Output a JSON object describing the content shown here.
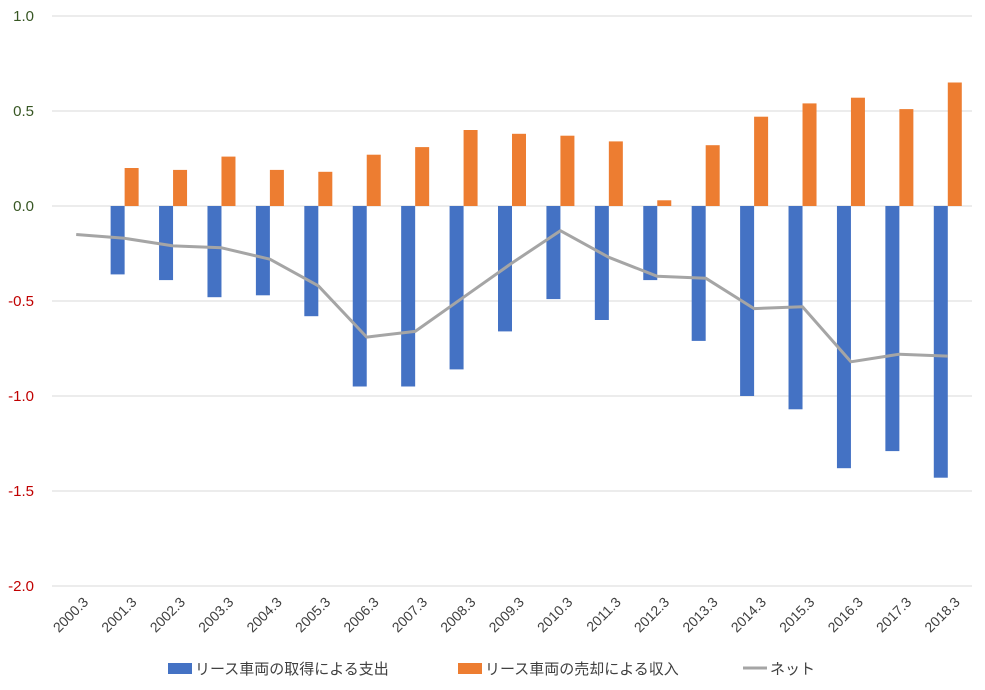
{
  "chart_data": {
    "type": "bar",
    "categories": [
      "2000.3",
      "2001.3",
      "2002.3",
      "2003.3",
      "2004.3",
      "2005.3",
      "2006.3",
      "2007.3",
      "2008.3",
      "2009.3",
      "2010.3",
      "2011.3",
      "2012.3",
      "2013.3",
      "2014.3",
      "2015.3",
      "2016.3",
      "2017.3",
      "2018.3"
    ],
    "series": [
      {
        "name": "リース車両の取得による支出",
        "kind": "bar",
        "color": "#4472C4",
        "values": [
          null,
          -0.36,
          -0.39,
          -0.48,
          -0.47,
          -0.58,
          -0.95,
          -0.95,
          -0.86,
          -0.66,
          -0.49,
          -0.6,
          -0.39,
          -0.71,
          -1.0,
          -1.07,
          -1.38,
          -1.29,
          -1.43
        ]
      },
      {
        "name": "リース車両の売却による収入",
        "kind": "bar",
        "color": "#ED7D31",
        "values": [
          null,
          0.2,
          0.19,
          0.26,
          0.19,
          0.18,
          0.27,
          0.31,
          0.4,
          0.38,
          0.37,
          0.34,
          0.03,
          0.32,
          0.47,
          0.54,
          0.57,
          0.51,
          0.65
        ]
      },
      {
        "name": "ネット",
        "kind": "line",
        "color": "#A5A5A5",
        "values": [
          -0.15,
          -0.17,
          -0.21,
          -0.22,
          -0.28,
          -0.42,
          -0.69,
          -0.66,
          -0.48,
          -0.3,
          -0.13,
          -0.27,
          -0.37,
          -0.38,
          -0.54,
          -0.53,
          -0.82,
          -0.78,
          -0.79
        ]
      }
    ],
    "yticks": [
      1.0,
      0.5,
      0.0,
      -0.5,
      -1.0,
      -1.5,
      -2.0
    ],
    "ytick_labels": [
      "1.0",
      "0.5",
      "0.0",
      "-0.5",
      "-1.0",
      "-1.5",
      "-2.0"
    ],
    "ytick_color_positive": "#375623",
    "ytick_color_negative": "#C00000",
    "ylim": [
      -2.0,
      1.0
    ],
    "grid": true,
    "grid_color": "#D9D9D9",
    "legend_position": "bottom",
    "title": "",
    "xlabel": "",
    "ylabel": ""
  }
}
